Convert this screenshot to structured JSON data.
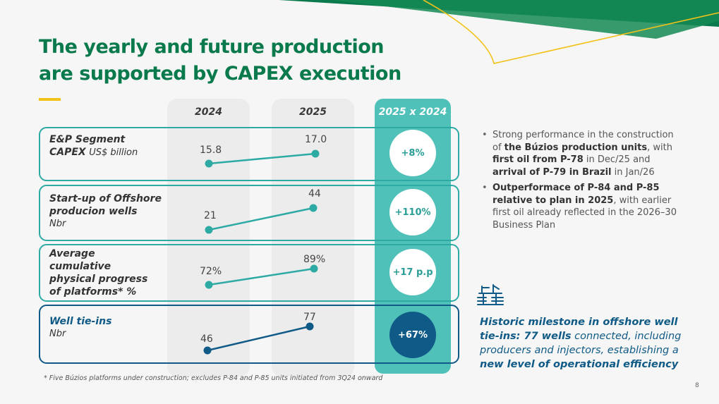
{
  "title": {
    "line1": "The yearly and future production",
    "line2": "are supported by CAPEX execution"
  },
  "columns": {
    "y2024": "2024",
    "y2025": "2025",
    "compare": "2025 x 2024"
  },
  "rows": [
    {
      "label_bold": [
        "E&P Segment",
        "CAPEX"
      ],
      "label_unit": "US$ billion",
      "v2024": "15.8",
      "v2025": "17.0",
      "change": "+8%"
    },
    {
      "label_bold": [
        "Start-up of Offshore",
        "producion wells"
      ],
      "label_unit": "Nbr",
      "v2024": "21",
      "v2025": "44",
      "change": "+110%"
    },
    {
      "label_bold": [
        "Average",
        "cumulative",
        "physical progress",
        "of platforms* %"
      ],
      "v2024": "72%",
      "v2025": "89%",
      "change": "+17 p.p"
    },
    {
      "label_bold": [
        "Well tie-ins"
      ],
      "label_unit": "Nbr",
      "v2024": "46",
      "v2025": "77",
      "change": "+67%"
    }
  ],
  "bullets": [
    {
      "t1": "Strong performance in the construction of ",
      "b1": "the Búzios production units",
      "t2": ", with ",
      "b2": "first oil from P-78",
      "t3": " in Dec/25 and ",
      "b3": "arrival of P-79 in Brazil",
      "t4": " in Jan/26"
    },
    {
      "b1": "Outperformace of P-84 and P-85 relative to plan in 2025",
      "t1": ", with earlier first oil already reflected in the 2026–30 Business Plan"
    }
  ],
  "milestone": {
    "text1": "Historic milestone in offshore well tie-ins: ",
    "bold": "77 wells",
    "text2": " connected, including producers and injectors, establishing a ",
    "bold2": "new level of operational efficiency"
  },
  "footnote": "* Five Búzios platforms under construction; excludes P-84 and P-85 units initiated from 3Q24 onward",
  "page_number": "8",
  "colors": {
    "green": "#0a7a4c",
    "teal": "#2eaaa4",
    "teal_fill": "#4fc1b9",
    "navy": "#0f5a86",
    "yellow": "#f2c21a"
  }
}
